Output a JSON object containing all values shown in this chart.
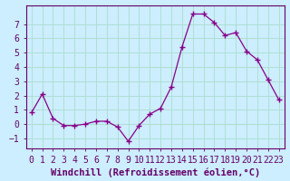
{
  "x": [
    0,
    1,
    2,
    3,
    4,
    5,
    6,
    7,
    8,
    9,
    10,
    11,
    12,
    13,
    14,
    15,
    16,
    17,
    18,
    19,
    20,
    21,
    22,
    23
  ],
  "y": [
    0.8,
    2.1,
    0.4,
    -0.1,
    -0.1,
    0.0,
    0.2,
    0.2,
    -0.2,
    -1.2,
    -0.1,
    0.7,
    1.1,
    2.6,
    5.4,
    7.7,
    7.7,
    7.1,
    6.2,
    6.4,
    5.1,
    4.5,
    3.1,
    1.7
  ],
  "line_color": "#880088",
  "marker_color": "#880088",
  "bg_color": "#cceeff",
  "grid_color": "#aaddcc",
  "xlabel": "Windchill (Refroidissement éolien,°C)",
  "xlabel_fontsize": 7.5,
  "tick_fontsize": 7,
  "ylabel_ticks": [
    -1,
    0,
    1,
    2,
    3,
    4,
    5,
    6,
    7
  ],
  "xlim": [
    -0.5,
    23.5
  ],
  "ylim": [
    -1.7,
    8.3
  ],
  "xtick_labels": [
    "0",
    "1",
    "2",
    "3",
    "4",
    "5",
    "6",
    "7",
    "8",
    "9",
    "10",
    "11",
    "12",
    "13",
    "14",
    "15",
    "16",
    "17",
    "18",
    "19",
    "20",
    "21",
    "22",
    "23"
  ]
}
